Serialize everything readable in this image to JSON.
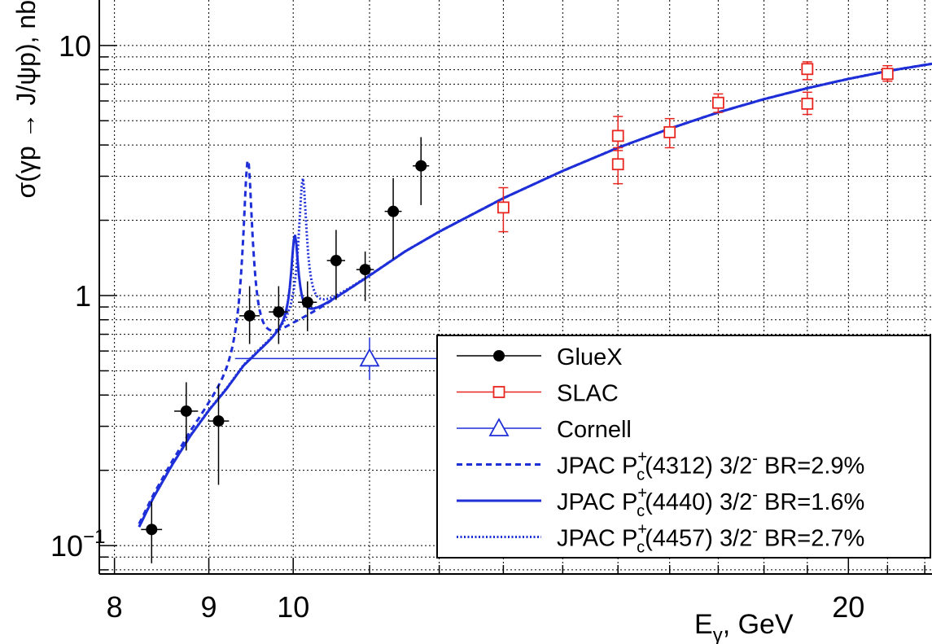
{
  "chart_data": {
    "type": "scatter",
    "xlabel": "E",
    "xlabel_sub": "γ",
    "xlabel_unit": ", GeV",
    "ylabel": "σ(γp → J/ψp), nb",
    "x_scale": "log",
    "y_scale": "log",
    "xlim": [
      7.85,
      22.2
    ],
    "ylim": [
      0.077,
      15.2
    ],
    "grid": true,
    "legend_position": "bottom-right",
    "x_ticks": [
      {
        "value": 8,
        "label": "8"
      },
      {
        "value": 9,
        "label": "9"
      },
      {
        "value": 10,
        "label": "10"
      },
      {
        "value": 20,
        "label": "20"
      }
    ],
    "y_ticks": [
      {
        "value": 0.1,
        "label": "10",
        "sup": "−1"
      },
      {
        "value": 1,
        "label": "1",
        "sup": ""
      },
      {
        "value": 10,
        "label": "10",
        "sup": ""
      }
    ],
    "series": [
      {
        "name": "GlueX",
        "kind": "points",
        "marker": "filled-circle",
        "color": "#000000",
        "points": [
          {
            "x": 8.38,
            "y": 0.116,
            "xerr": 0.11,
            "ylo": 0.085,
            "yhi": 0.15
          },
          {
            "x": 8.75,
            "y": 0.345,
            "xerr": 0.13,
            "ylo": 0.24,
            "yhi": 0.45
          },
          {
            "x": 9.11,
            "y": 0.315,
            "xerr": 0.12,
            "ylo": 0.175,
            "yhi": 0.44
          },
          {
            "x": 9.47,
            "y": 0.83,
            "xerr": 0.12,
            "ylo": 0.64,
            "yhi": 1.09
          },
          {
            "x": 9.82,
            "y": 0.86,
            "xerr": 0.12,
            "ylo": 0.64,
            "yhi": 1.09
          },
          {
            "x": 10.18,
            "y": 0.94,
            "xerr": 0.12,
            "ylo": 0.72,
            "yhi": 1.14
          },
          {
            "x": 10.55,
            "y": 1.38,
            "xerr": 0.12,
            "ylo": 0.96,
            "yhi": 1.83
          },
          {
            "x": 10.94,
            "y": 1.27,
            "xerr": 0.12,
            "ylo": 0.95,
            "yhi": 1.5
          },
          {
            "x": 11.33,
            "y": 2.17,
            "xerr": 0.12,
            "ylo": 1.4,
            "yhi": 2.95
          },
          {
            "x": 11.73,
            "y": 3.3,
            "xerr": 0.12,
            "ylo": 2.3,
            "yhi": 4.3
          }
        ]
      },
      {
        "name": "SLAC",
        "kind": "points",
        "marker": "open-square",
        "color": "#e8251f",
        "points": [
          {
            "x": 13.0,
            "y": 2.25,
            "ylo": 1.8,
            "yhi": 2.7
          },
          {
            "x": 15.0,
            "y": 3.35,
            "ylo": 2.8,
            "yhi": 3.9
          },
          {
            "x": 15.0,
            "y": 4.35,
            "ylo": 3.8,
            "yhi": 5.2
          },
          {
            "x": 16.0,
            "y": 4.5,
            "ylo": 3.9,
            "yhi": 5.1
          },
          {
            "x": 17.0,
            "y": 5.9,
            "ylo": 5.4,
            "yhi": 6.4
          },
          {
            "x": 19.0,
            "y": 5.85,
            "ylo": 5.3,
            "yhi": 6.5
          },
          {
            "x": 19.0,
            "y": 8.05,
            "ylo": 7.3,
            "yhi": 8.6
          },
          {
            "x": 21.0,
            "y": 7.7,
            "ylo": 7.2,
            "yhi": 8.3
          }
        ]
      },
      {
        "name": "Cornell",
        "kind": "points",
        "marker": "open-triangle",
        "color": "#1f2fd8",
        "points": [
          {
            "x": 11.0,
            "y": 0.56,
            "xlo": 9.3,
            "xhi": 12.2,
            "ylo": 0.46,
            "yhi": 0.68
          }
        ]
      },
      {
        "name": "JPAC P_c^+(4312) 3/2^- BR=2.9%",
        "legend": {
          "pre": "JPAC P",
          "sub": "c",
          "sup": "+",
          "post": "(4312) 3/2",
          "sup2": "-",
          "tail": " BR=2.9%"
        },
        "kind": "line",
        "style": "dashed",
        "color": "#1f2fd8",
        "peak": {
          "x": 9.45,
          "y": 3.5
        }
      },
      {
        "name": "JPAC P_c^+(4440) 3/2^- BR=1.6%",
        "legend": {
          "pre": "JPAC P",
          "sub": "c",
          "sup": "+",
          "post": "(4440) 3/2",
          "sup2": "-",
          "tail": " BR=1.6%"
        },
        "kind": "line",
        "style": "solid",
        "color": "#1f2fd8",
        "peak": {
          "x": 10.02,
          "y": 1.75
        }
      },
      {
        "name": "JPAC P_c^+(4457) 3/2^- BR=2.7%",
        "legend": {
          "pre": "JPAC P",
          "sub": "c",
          "sup": "+",
          "post": "(4457) 3/2",
          "sup2": "-",
          "tail": " BR=2.7%"
        },
        "kind": "line",
        "style": "dotted",
        "color": "#1f2fd8",
        "peak": {
          "x": 10.12,
          "y": 2.95
        }
      }
    ],
    "background_curve": [
      [
        8.25,
        0.118
      ],
      [
        8.4,
        0.155
      ],
      [
        8.6,
        0.21
      ],
      [
        8.8,
        0.275
      ],
      [
        9.0,
        0.345
      ],
      [
        9.2,
        0.42
      ],
      [
        9.4,
        0.52
      ],
      [
        9.6,
        0.6
      ],
      [
        9.8,
        0.68
      ],
      [
        10.0,
        0.76
      ],
      [
        10.3,
        0.87
      ],
      [
        10.6,
        1.0
      ],
      [
        11.0,
        1.2
      ],
      [
        11.5,
        1.5
      ],
      [
        12.0,
        1.8
      ],
      [
        13.0,
        2.45
      ],
      [
        14.0,
        3.15
      ],
      [
        15.0,
        3.9
      ],
      [
        16.0,
        4.65
      ],
      [
        17.0,
        5.4
      ],
      [
        18.0,
        6.1
      ],
      [
        19.0,
        6.75
      ],
      [
        20.0,
        7.35
      ],
      [
        21.0,
        7.9
      ],
      [
        22.2,
        8.45
      ]
    ]
  }
}
